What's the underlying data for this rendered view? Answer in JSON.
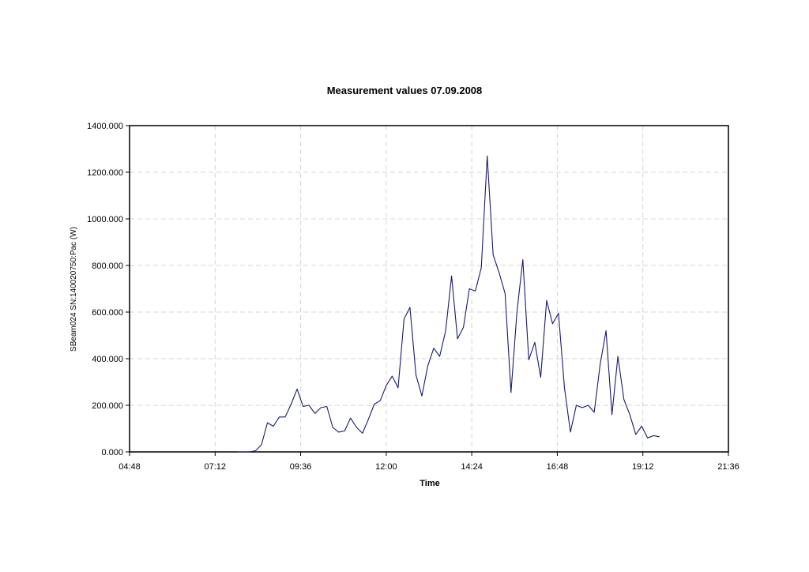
{
  "chart_data": {
    "type": "line",
    "title": "Measurement values 07.09.2008",
    "xlabel": "Time",
    "ylabel": "SBeam024 SN:140020750:Pac (W)",
    "x_ticks": [
      "04:48",
      "07:12",
      "09:36",
      "12:00",
      "14:24",
      "16:48",
      "19:12",
      "21:36"
    ],
    "y_ticks": [
      "0.000",
      "200.000",
      "400.000",
      "600.000",
      "800.000",
      "1000.000",
      "1200.000",
      "1400.000"
    ],
    "xlim": [
      "04:48",
      "21:36"
    ],
    "ylim": [
      0,
      1400
    ],
    "grid": true,
    "series": [
      {
        "color": "#1a1a6e",
        "x": [
          "07:50",
          "08:10",
          "08:20",
          "08:30",
          "08:40",
          "08:50",
          "09:00",
          "09:10",
          "09:20",
          "09:30",
          "09:40",
          "09:50",
          "10:00",
          "10:10",
          "10:20",
          "10:30",
          "10:40",
          "10:50",
          "11:00",
          "11:10",
          "11:20",
          "11:30",
          "11:40",
          "11:50",
          "12:00",
          "12:10",
          "12:20",
          "12:30",
          "12:40",
          "12:50",
          "13:00",
          "13:10",
          "13:20",
          "13:30",
          "13:40",
          "13:50",
          "14:00",
          "14:10",
          "14:20",
          "14:30",
          "14:40",
          "14:50",
          "15:00",
          "15:10",
          "15:20",
          "15:30",
          "15:40",
          "15:50",
          "16:00",
          "16:10",
          "16:20",
          "16:30",
          "16:40",
          "16:50",
          "17:00",
          "17:10",
          "17:20",
          "17:30",
          "17:40",
          "17:50",
          "18:00",
          "18:10",
          "18:20",
          "18:30",
          "18:40",
          "18:50",
          "19:00",
          "19:10",
          "19:20",
          "19:30",
          "19:40"
        ],
        "y": [
          0,
          0,
          5,
          30,
          125,
          110,
          150,
          150,
          205,
          270,
          195,
          200,
          165,
          190,
          195,
          105,
          85,
          90,
          145,
          105,
          80,
          140,
          205,
          220,
          285,
          325,
          275,
          570,
          620,
          330,
          240,
          370,
          445,
          410,
          520,
          755,
          485,
          535,
          700,
          690,
          790,
          1270,
          845,
          770,
          680,
          255,
          600,
          825,
          395,
          470,
          320,
          650,
          550,
          595,
          275,
          85,
          200,
          190,
          200,
          170,
          375,
          520,
          160,
          410,
          225,
          160,
          75,
          110,
          60,
          70,
          65
        ]
      }
    ]
  }
}
